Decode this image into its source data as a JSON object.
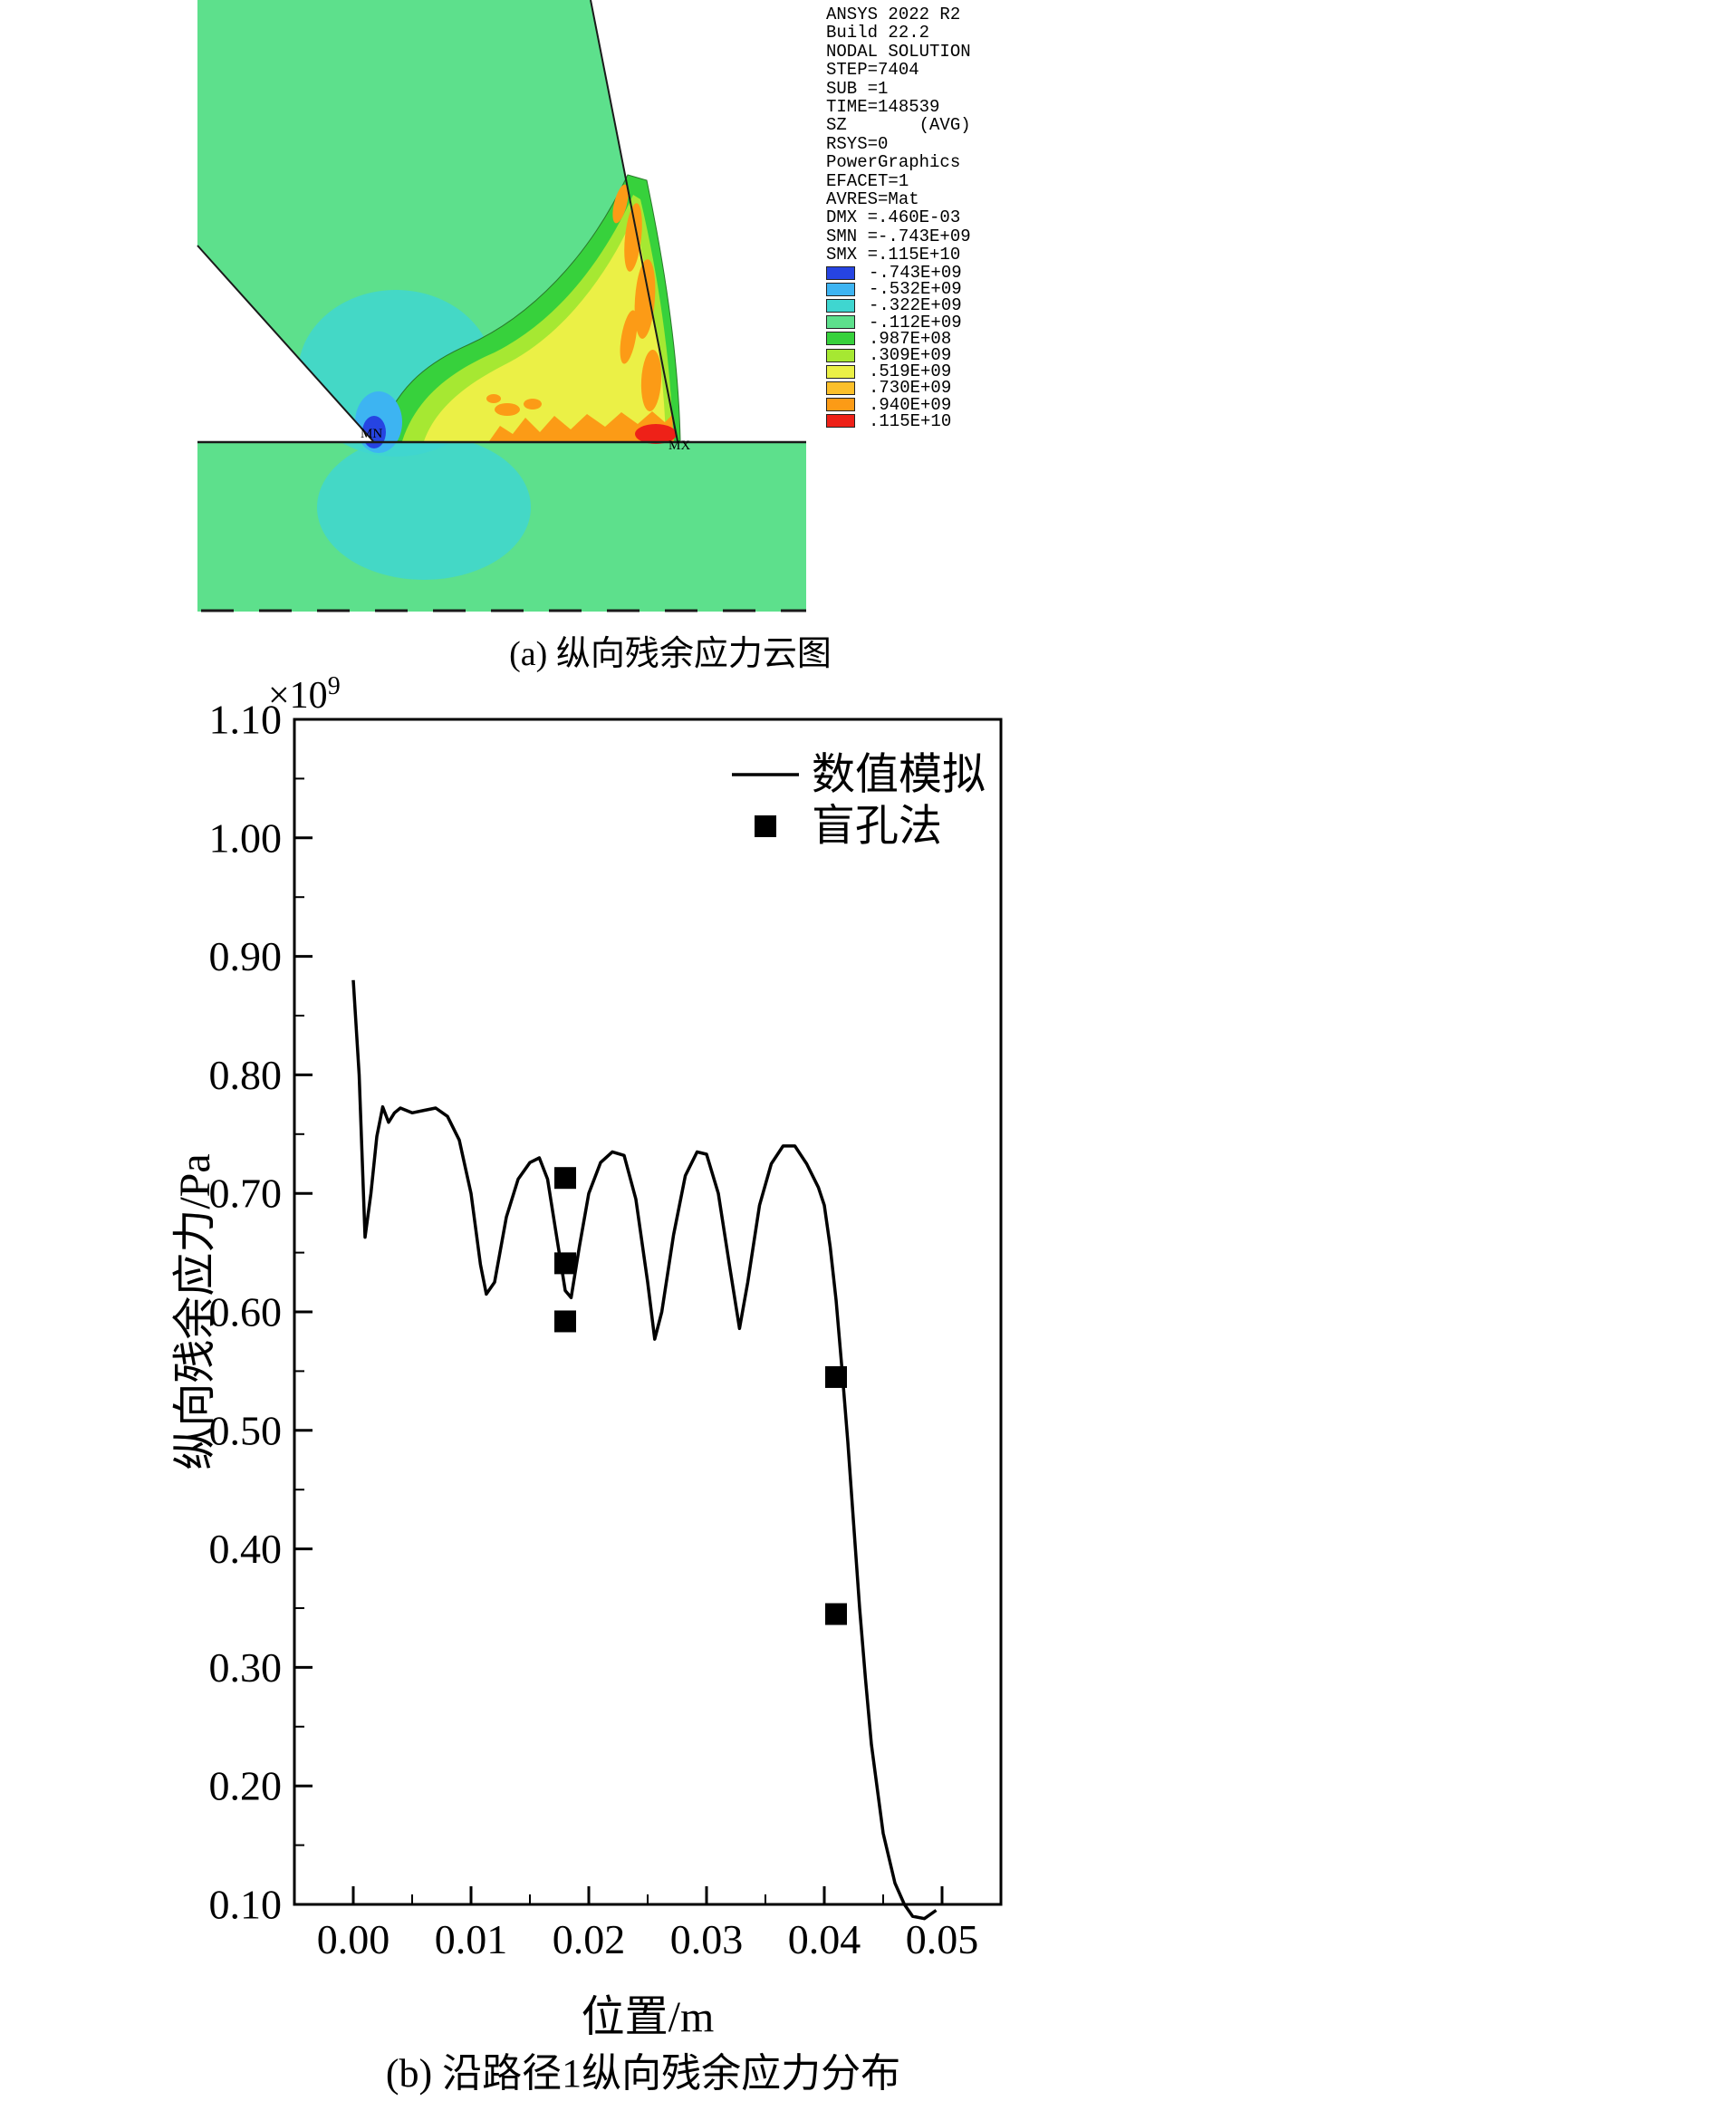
{
  "panel_a": {
    "info_lines": [
      "ANSYS 2022 R2",
      "Build 22.2",
      "NODAL SOLUTION",
      "STEP=7404",
      "SUB =1",
      "TIME=148539",
      "SZ       (AVG)",
      "RSYS=0",
      "PowerGraphics",
      "EFACET=1",
      "AVRES=Mat",
      "DMX =.460E-03",
      "SMN =-.743E+09",
      "SMX =.115E+10"
    ],
    "legend": [
      {
        "color": "#2644e2",
        "value": "-.743E+09"
      },
      {
        "color": "#3db4f2",
        "value": "-.532E+09"
      },
      {
        "color": "#3fd6d0",
        "value": "-.322E+09"
      },
      {
        "color": "#5de08c",
        "value": "-.112E+09"
      },
      {
        "color": "#37d13c",
        "value": ".987E+08"
      },
      {
        "color": "#a6e832",
        "value": ".309E+09"
      },
      {
        "color": "#ebf046",
        "value": ".519E+09"
      },
      {
        "color": "#fcc02a",
        "value": ".730E+09"
      },
      {
        "color": "#fc9b16",
        "value": ".940E+09"
      },
      {
        "color": "#ee2118",
        "value": ".115E+10"
      }
    ],
    "labels": {
      "mn": "MN",
      "mx": "MX"
    },
    "caption": "(a) 纵向残余应力云图"
  },
  "chart_data": {
    "type": "line",
    "title": "",
    "xlabel": "位置/m",
    "ylabel": "纵向残余应力/Pa",
    "scale_base": "×10",
    "scale_exp": "9",
    "caption": "(b) 沿路径1纵向残余应力分布",
    "xlim": [
      -0.005,
      0.055
    ],
    "ylim": [
      0.1,
      1.1
    ],
    "xticks": [
      0.0,
      0.01,
      0.02,
      0.03,
      0.04,
      0.05
    ],
    "xtick_labels": [
      "0.00",
      "0.01",
      "0.02",
      "0.03",
      "0.04",
      "0.05"
    ],
    "yticks": [
      0.1,
      0.2,
      0.3,
      0.4,
      0.5,
      0.6,
      0.7,
      0.8,
      0.9,
      1.0,
      1.1
    ],
    "ytick_labels": [
      "0.10",
      "0.20",
      "0.30",
      "0.40",
      "0.50",
      "0.60",
      "0.70",
      "0.80",
      "0.90",
      "1.00",
      "1.10"
    ],
    "x_minor_step": 0.005,
    "y_minor_step": 0.05,
    "grid": false,
    "legend_position": "top-right-inside",
    "series": [
      {
        "name": "数值模拟",
        "type": "line",
        "color": "#000000",
        "points": [
          [
            0.0,
            0.88
          ],
          [
            0.0005,
            0.8
          ],
          [
            0.001,
            0.663
          ],
          [
            0.0015,
            0.7
          ],
          [
            0.002,
            0.748
          ],
          [
            0.0025,
            0.773
          ],
          [
            0.003,
            0.76
          ],
          [
            0.0035,
            0.768
          ],
          [
            0.004,
            0.772
          ],
          [
            0.005,
            0.768
          ],
          [
            0.006,
            0.77
          ],
          [
            0.007,
            0.772
          ],
          [
            0.008,
            0.765
          ],
          [
            0.009,
            0.745
          ],
          [
            0.01,
            0.7
          ],
          [
            0.0108,
            0.64
          ],
          [
            0.0113,
            0.615
          ],
          [
            0.012,
            0.625
          ],
          [
            0.013,
            0.68
          ],
          [
            0.014,
            0.712
          ],
          [
            0.015,
            0.726
          ],
          [
            0.0158,
            0.73
          ],
          [
            0.0165,
            0.712
          ],
          [
            0.0172,
            0.668
          ],
          [
            0.018,
            0.618
          ],
          [
            0.0185,
            0.612
          ],
          [
            0.0192,
            0.655
          ],
          [
            0.02,
            0.7
          ],
          [
            0.021,
            0.726
          ],
          [
            0.022,
            0.735
          ],
          [
            0.023,
            0.732
          ],
          [
            0.024,
            0.695
          ],
          [
            0.025,
            0.625
          ],
          [
            0.0256,
            0.577
          ],
          [
            0.0262,
            0.6
          ],
          [
            0.0272,
            0.665
          ],
          [
            0.0282,
            0.715
          ],
          [
            0.0292,
            0.735
          ],
          [
            0.03,
            0.733
          ],
          [
            0.031,
            0.7
          ],
          [
            0.032,
            0.636
          ],
          [
            0.0328,
            0.586
          ],
          [
            0.0335,
            0.625
          ],
          [
            0.0345,
            0.69
          ],
          [
            0.0355,
            0.725
          ],
          [
            0.0365,
            0.74
          ],
          [
            0.0375,
            0.74
          ],
          [
            0.0385,
            0.725
          ],
          [
            0.0395,
            0.705
          ],
          [
            0.04,
            0.69
          ],
          [
            0.0405,
            0.655
          ],
          [
            0.041,
            0.61
          ],
          [
            0.0415,
            0.552
          ],
          [
            0.042,
            0.49
          ],
          [
            0.0425,
            0.42
          ],
          [
            0.043,
            0.35
          ],
          [
            0.0435,
            0.29
          ],
          [
            0.044,
            0.235
          ],
          [
            0.045,
            0.16
          ],
          [
            0.046,
            0.118
          ],
          [
            0.0468,
            0.1
          ],
          [
            0.0475,
            0.09
          ],
          [
            0.0485,
            0.088
          ],
          [
            0.0495,
            0.095
          ]
        ]
      },
      {
        "name": "盲孔法",
        "type": "scatter",
        "marker": "square",
        "color": "#000000",
        "points": [
          [
            0.018,
            0.713
          ],
          [
            0.018,
            0.641
          ],
          [
            0.018,
            0.592
          ],
          [
            0.041,
            0.545
          ],
          [
            0.041,
            0.345
          ]
        ]
      }
    ]
  }
}
